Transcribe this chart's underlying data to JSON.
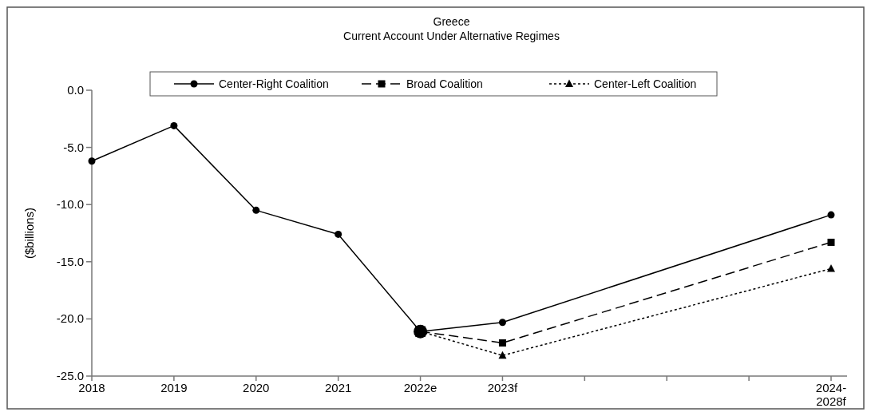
{
  "chart_data": {
    "type": "line",
    "title": "Greece",
    "subtitle": "Current Account Under Alternative Regimes",
    "ylabel": "($billions)",
    "categories": [
      "2018",
      "2019",
      "2020",
      "2021",
      "2022e",
      "2023f",
      null,
      null,
      null,
      "2024-2028f"
    ],
    "series": [
      {
        "name": "Center-Right Coalition",
        "color": "#000000",
        "marker": "circle",
        "line_style": "solid",
        "values": [
          -6.2,
          -3.1,
          -10.5,
          -12.6,
          -21.1,
          -20.3,
          null,
          null,
          null,
          -10.9
        ]
      },
      {
        "name": "Broad Coalition",
        "color": "#000000",
        "marker": "square",
        "line_style": "dashed",
        "values": [
          null,
          null,
          null,
          null,
          -21.1,
          -22.1,
          null,
          null,
          null,
          -13.3
        ]
      },
      {
        "name": "Center-Left Coalition",
        "color": "#000000",
        "marker": "triangle",
        "line_style": "dotted",
        "values": [
          null,
          null,
          null,
          null,
          -21.1,
          -23.2,
          null,
          null,
          null,
          -15.6
        ]
      }
    ],
    "ylim": [
      -25,
      0
    ],
    "yticks": [
      {
        "value": -25,
        "label": "-25.0"
      },
      {
        "value": -20,
        "label": "-20.0"
      },
      {
        "value": -15,
        "label": "-15.0"
      },
      {
        "value": -10,
        "label": "-10.0"
      },
      {
        "value": -5,
        "label": "-5.0"
      },
      {
        "value": 0,
        "label": "0.0"
      }
    ],
    "grid": false,
    "legend": "top"
  }
}
